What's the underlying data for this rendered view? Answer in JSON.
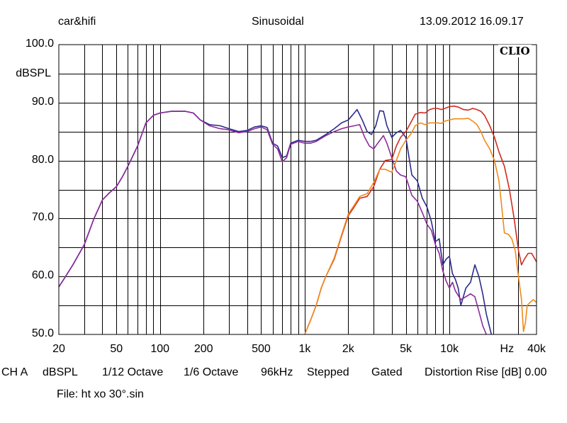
{
  "header": {
    "left": "car&hifi",
    "center": "Sinusoidal",
    "right": "13.09.2012 16.09.17"
  },
  "logo_text": "CLIO",
  "status": {
    "channel": "CH A",
    "unit": "dBSPL",
    "smoothing": "1/12 Octave",
    "resolution": "1/6 Octave",
    "sample_rate": "96kHz",
    "mode": "Stepped",
    "gating": "Gated",
    "distortion": "Distortion Rise [dB] 0.00"
  },
  "file_line": "File: ht xo 30°.sin",
  "chart_data": {
    "type": "line",
    "x_scale": "log",
    "xlim": [
      20,
      40000
    ],
    "ylim": [
      50,
      100
    ],
    "grid": true,
    "ylabel": "dBSPL",
    "y_ticks": [
      {
        "value": 100,
        "label": "100.0"
      },
      {
        "value": 90,
        "label": "90.0"
      },
      {
        "value": 80,
        "label": "80.0"
      },
      {
        "value": 70,
        "label": "70.0"
      },
      {
        "value": 60,
        "label": "60.0"
      },
      {
        "value": 50,
        "label": "50.0"
      }
    ],
    "x_ticks": [
      {
        "value": 20,
        "label": "20"
      },
      {
        "value": 50,
        "label": "50"
      },
      {
        "value": 100,
        "label": "100"
      },
      {
        "value": 200,
        "label": "200"
      },
      {
        "value": 500,
        "label": "500"
      },
      {
        "value": 1000,
        "label": "1k"
      },
      {
        "value": 2000,
        "label": "2k"
      },
      {
        "value": 5000,
        "label": "5k"
      },
      {
        "value": 10000,
        "label": "10k"
      },
      {
        "value": 25000,
        "label": "Hz"
      },
      {
        "value": 40000,
        "label": "40k"
      }
    ],
    "series": [
      {
        "color": "#2b2b8a",
        "points": [
          [
            20,
            58.2
          ],
          [
            22,
            59.8
          ],
          [
            25,
            62
          ],
          [
            30,
            65.5
          ],
          [
            35,
            70
          ],
          [
            40,
            73.2
          ],
          [
            45,
            74.5
          ],
          [
            50,
            75.5
          ],
          [
            55,
            77.2
          ],
          [
            60,
            79
          ],
          [
            70,
            82.5
          ],
          [
            80,
            86.5
          ],
          [
            90,
            87.8
          ],
          [
            100,
            88.2
          ],
          [
            120,
            88.5
          ],
          [
            150,
            88.5
          ],
          [
            170,
            88.2
          ],
          [
            190,
            87
          ],
          [
            220,
            86.2
          ],
          [
            260,
            86
          ],
          [
            300,
            85.5
          ],
          [
            350,
            85
          ],
          [
            400,
            85.2
          ],
          [
            450,
            85.8
          ],
          [
            500,
            86
          ],
          [
            550,
            85.7
          ],
          [
            600,
            83
          ],
          [
            650,
            82.5
          ],
          [
            700,
            80.5
          ],
          [
            750,
            80.8
          ],
          [
            800,
            83
          ],
          [
            900,
            83.5
          ],
          [
            1000,
            83.3
          ],
          [
            1100,
            83.3
          ],
          [
            1200,
            83.5
          ],
          [
            1400,
            84.5
          ],
          [
            1600,
            85.5
          ],
          [
            1800,
            86.5
          ],
          [
            2000,
            87
          ],
          [
            2200,
            88.2
          ],
          [
            2300,
            88.8
          ],
          [
            2500,
            87
          ],
          [
            2700,
            85
          ],
          [
            2900,
            84.5
          ],
          [
            3100,
            86
          ],
          [
            3300,
            88.6
          ],
          [
            3500,
            88.5
          ],
          [
            3700,
            86
          ],
          [
            4000,
            84
          ],
          [
            4300,
            84.8
          ],
          [
            4600,
            85.2
          ],
          [
            5000,
            84
          ],
          [
            5500,
            77.5
          ],
          [
            6000,
            76.5
          ],
          [
            6500,
            73.5
          ],
          [
            7000,
            72
          ],
          [
            7500,
            69.5
          ],
          [
            8000,
            66
          ],
          [
            8500,
            66.5
          ],
          [
            9000,
            62
          ],
          [
            9500,
            63
          ],
          [
            10000,
            63.5
          ],
          [
            10500,
            60.5
          ],
          [
            11000,
            59.5
          ],
          [
            11500,
            58
          ],
          [
            12000,
            55
          ],
          [
            13000,
            58
          ],
          [
            14000,
            59
          ],
          [
            15000,
            62
          ],
          [
            16000,
            60
          ],
          [
            17000,
            57
          ],
          [
            18000,
            53.5
          ],
          [
            19500,
            50
          ]
        ]
      },
      {
        "color": "#8e2a9a",
        "points": [
          [
            20,
            58.2
          ],
          [
            22,
            59.8
          ],
          [
            25,
            62
          ],
          [
            30,
            65.5
          ],
          [
            35,
            70
          ],
          [
            40,
            73.2
          ],
          [
            45,
            74.5
          ],
          [
            50,
            75.5
          ],
          [
            55,
            77.2
          ],
          [
            60,
            79
          ],
          [
            70,
            82.5
          ],
          [
            80,
            86.5
          ],
          [
            90,
            87.8
          ],
          [
            100,
            88.2
          ],
          [
            120,
            88.5
          ],
          [
            150,
            88.5
          ],
          [
            170,
            88.2
          ],
          [
            190,
            87
          ],
          [
            220,
            86
          ],
          [
            260,
            85.5
          ],
          [
            300,
            85.3
          ],
          [
            350,
            84.8
          ],
          [
            400,
            85
          ],
          [
            450,
            85.5
          ],
          [
            500,
            85.8
          ],
          [
            550,
            85.3
          ],
          [
            600,
            82.8
          ],
          [
            650,
            82
          ],
          [
            700,
            79.8
          ],
          [
            750,
            80.5
          ],
          [
            800,
            82.8
          ],
          [
            900,
            83.3
          ],
          [
            1000,
            83
          ],
          [
            1100,
            83
          ],
          [
            1200,
            83.3
          ],
          [
            1400,
            84.3
          ],
          [
            1600,
            85
          ],
          [
            1800,
            85.5
          ],
          [
            2000,
            85.8
          ],
          [
            2200,
            86
          ],
          [
            2400,
            86.2
          ],
          [
            2600,
            84
          ],
          [
            2800,
            82.5
          ],
          [
            3000,
            82
          ],
          [
            3200,
            83
          ],
          [
            3500,
            84.3
          ],
          [
            3700,
            83
          ],
          [
            4000,
            80.5
          ],
          [
            4300,
            78.2
          ],
          [
            4600,
            77.5
          ],
          [
            5000,
            77.2
          ],
          [
            5500,
            74
          ],
          [
            6000,
            73
          ],
          [
            6500,
            71
          ],
          [
            7000,
            69
          ],
          [
            7500,
            68
          ],
          [
            8000,
            65.5
          ],
          [
            8500,
            64
          ],
          [
            9000,
            61
          ],
          [
            9500,
            59.2
          ],
          [
            10000,
            58
          ],
          [
            10500,
            59
          ],
          [
            11000,
            57.5
          ],
          [
            12000,
            56
          ],
          [
            13000,
            56.5
          ],
          [
            14000,
            57
          ],
          [
            15000,
            56.5
          ],
          [
            16000,
            54
          ],
          [
            17000,
            51.5
          ],
          [
            18000,
            50
          ]
        ]
      },
      {
        "color": "#d12a1e",
        "points": [
          [
            1000,
            50
          ],
          [
            1100,
            52.5
          ],
          [
            1200,
            55
          ],
          [
            1300,
            58
          ],
          [
            1400,
            60
          ],
          [
            1600,
            63
          ],
          [
            1800,
            67
          ],
          [
            2000,
            70.5
          ],
          [
            2200,
            72
          ],
          [
            2400,
            73.5
          ],
          [
            2700,
            73.8
          ],
          [
            3000,
            75.5
          ],
          [
            3300,
            78.5
          ],
          [
            3600,
            80
          ],
          [
            4000,
            80.2
          ],
          [
            4300,
            82.5
          ],
          [
            4600,
            84
          ],
          [
            5000,
            85
          ],
          [
            5400,
            86.5
          ],
          [
            5800,
            88
          ],
          [
            6300,
            88.3
          ],
          [
            6800,
            88.2
          ],
          [
            7300,
            88.8
          ],
          [
            7800,
            89
          ],
          [
            8300,
            89
          ],
          [
            8800,
            88.8
          ],
          [
            9300,
            89
          ],
          [
            10000,
            89.3
          ],
          [
            10800,
            89.4
          ],
          [
            11600,
            89.2
          ],
          [
            12500,
            88.8
          ],
          [
            13500,
            88.7
          ],
          [
            14500,
            89
          ],
          [
            15500,
            88.8
          ],
          [
            16500,
            88.5
          ],
          [
            17500,
            87.8
          ],
          [
            19000,
            86
          ],
          [
            20500,
            84
          ],
          [
            22000,
            81.5
          ],
          [
            24000,
            79
          ],
          [
            26000,
            75
          ],
          [
            28000,
            70
          ],
          [
            30000,
            64.5
          ],
          [
            31500,
            62
          ],
          [
            33000,
            63
          ],
          [
            35000,
            64
          ],
          [
            37000,
            64
          ],
          [
            39000,
            63
          ],
          [
            40000,
            62.5
          ]
        ]
      },
      {
        "color": "#f08a1c",
        "points": [
          [
            1000,
            50
          ],
          [
            1100,
            52.5
          ],
          [
            1200,
            55
          ],
          [
            1300,
            58
          ],
          [
            1400,
            60
          ],
          [
            1600,
            63.2
          ],
          [
            1800,
            67.2
          ],
          [
            2000,
            70.8
          ],
          [
            2200,
            72.3
          ],
          [
            2400,
            73.8
          ],
          [
            2700,
            74.3
          ],
          [
            3000,
            76.2
          ],
          [
            3300,
            78.5
          ],
          [
            3600,
            78.5
          ],
          [
            4000,
            78
          ],
          [
            4300,
            80
          ],
          [
            4600,
            82
          ],
          [
            5000,
            83.5
          ],
          [
            5400,
            84.5
          ],
          [
            5800,
            86
          ],
          [
            6300,
            86.5
          ],
          [
            6800,
            86.2
          ],
          [
            7300,
            86.5
          ],
          [
            7800,
            86.5
          ],
          [
            8300,
            86.5
          ],
          [
            8800,
            86.4
          ],
          [
            9300,
            86.8
          ],
          [
            10000,
            87
          ],
          [
            10800,
            87.2
          ],
          [
            11600,
            87.2
          ],
          [
            12500,
            87.2
          ],
          [
            13500,
            87.3
          ],
          [
            14500,
            86.8
          ],
          [
            15500,
            86.2
          ],
          [
            16500,
            85
          ],
          [
            17500,
            83.5
          ],
          [
            19000,
            82
          ],
          [
            20500,
            80
          ],
          [
            22000,
            76.5
          ],
          [
            23000,
            72
          ],
          [
            24000,
            67.5
          ],
          [
            25500,
            67.3
          ],
          [
            27000,
            66.5
          ],
          [
            28500,
            64.5
          ],
          [
            30000,
            60
          ],
          [
            31500,
            56
          ],
          [
            32500,
            50.5
          ],
          [
            33500,
            52
          ],
          [
            34500,
            55
          ],
          [
            36000,
            55.5
          ],
          [
            38000,
            56
          ],
          [
            40000,
            55.5
          ]
        ]
      }
    ]
  }
}
